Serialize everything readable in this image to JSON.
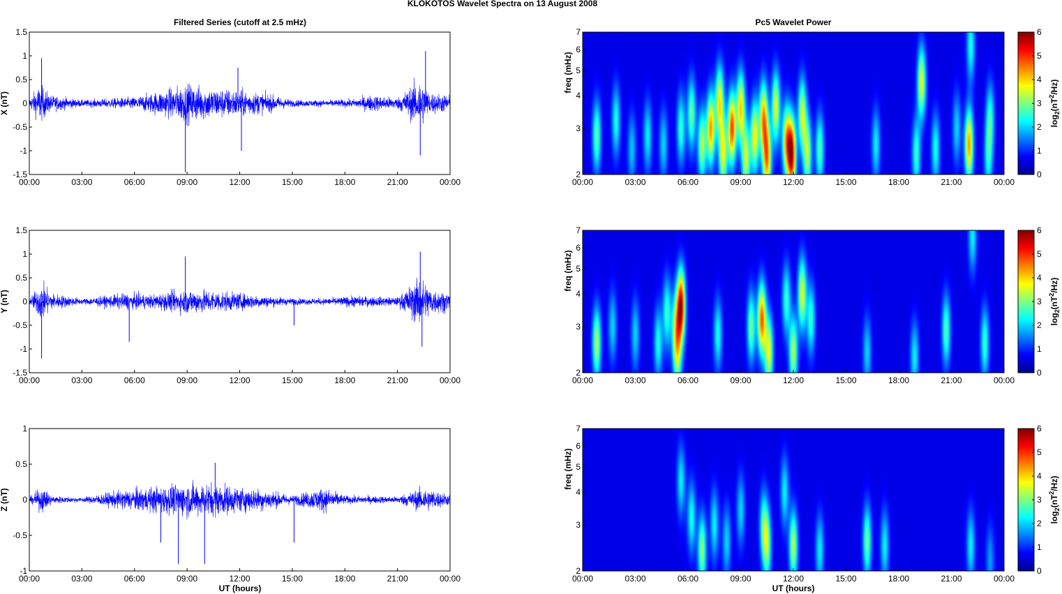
{
  "figure": {
    "suptitle": "KLOKOTOS Wavelet Spectra on 13 August    2008",
    "left_title": "Filtered Series (cutoff at 2.5 mHz)",
    "right_title": "Pc5 Wavelet Power",
    "xlabel": "UT (hours)",
    "colorbar_label": "log2(nT2/Hz)"
  },
  "chart_data": [
    {
      "type": "line",
      "panel": "X",
      "ylabel": "X (nT)",
      "ylim": [
        -1.5,
        1.5
      ],
      "yticks": [
        "-1.5",
        "-1",
        "-0.5",
        "0",
        "0.5",
        "1",
        "1.5"
      ],
      "xlim": [
        0,
        24
      ],
      "xticks": [
        "00:00",
        "03:00",
        "06:00",
        "09:00",
        "12:00",
        "15:00",
        "18:00",
        "21:00",
        "00:00"
      ],
      "series_color": "#0000ff",
      "envelope": {
        "x": [
          0,
          0.6,
          1.2,
          3,
          6,
          7.5,
          9,
          10.5,
          12,
          13.5,
          15,
          17,
          18.5,
          19.5,
          21,
          22.3,
          22.8,
          24
        ],
        "amp": [
          0.15,
          0.7,
          0.3,
          0.12,
          0.22,
          0.45,
          0.7,
          0.55,
          0.5,
          0.35,
          0.12,
          0.12,
          0.15,
          0.3,
          0.2,
          0.9,
          0.4,
          0.3
        ]
      },
      "spikes": [
        {
          "x": 0.7,
          "y": 0.95
        },
        {
          "x": 8.9,
          "y": -1.45
        },
        {
          "x": 12.1,
          "y": -1.0
        },
        {
          "x": 22.3,
          "y": -1.1
        },
        {
          "x": 22.6,
          "y": 1.1
        },
        {
          "x": 11.9,
          "y": 0.75
        }
      ]
    },
    {
      "type": "line",
      "panel": "Y",
      "ylabel": "Y (nT)",
      "ylim": [
        -1.5,
        1.5
      ],
      "yticks": [
        "-1.5",
        "-1",
        "-0.5",
        "0",
        "0.5",
        "1",
        "1.5"
      ],
      "xlim": [
        0,
        24
      ],
      "xticks": [
        "00:00",
        "03:00",
        "06:00",
        "09:00",
        "12:00",
        "15:00",
        "18:00",
        "21:00",
        "00:00"
      ],
      "series_color": "#0000ff",
      "envelope": {
        "x": [
          0,
          0.7,
          1.3,
          3,
          5.5,
          7,
          9,
          10.5,
          12,
          13.5,
          15,
          17,
          18.5,
          21,
          22.3,
          22.9,
          24
        ],
        "amp": [
          0.1,
          0.7,
          0.3,
          0.1,
          0.3,
          0.25,
          0.45,
          0.4,
          0.3,
          0.2,
          0.12,
          0.12,
          0.2,
          0.15,
          0.9,
          0.5,
          0.3
        ]
      },
      "spikes": [
        {
          "x": 0.7,
          "y": -1.2
        },
        {
          "x": 5.7,
          "y": -0.85
        },
        {
          "x": 8.9,
          "y": 0.95
        },
        {
          "x": 15.1,
          "y": -0.5
        },
        {
          "x": 22.4,
          "y": -0.95
        },
        {
          "x": 22.3,
          "y": 1.05
        }
      ]
    },
    {
      "type": "line",
      "panel": "Z",
      "ylabel": "Z (nT)",
      "ylim": [
        -1,
        1
      ],
      "yticks": [
        "-1",
        "-0.5",
        "0",
        "0.5",
        "1"
      ],
      "xlim": [
        0,
        24
      ],
      "xticks": [
        "00:00",
        "03:00",
        "06:00",
        "09:00",
        "12:00",
        "15:00",
        "18:00",
        "21:00",
        "00:00"
      ],
      "series_color": "#0000ff",
      "envelope": {
        "x": [
          0,
          0.7,
          1.3,
          3,
          5.5,
          7,
          9,
          10.5,
          12,
          13.5,
          15,
          16.8,
          18,
          21,
          22.5,
          24
        ],
        "amp": [
          0.05,
          0.3,
          0.1,
          0.05,
          0.25,
          0.3,
          0.4,
          0.4,
          0.3,
          0.25,
          0.1,
          0.3,
          0.1,
          0.08,
          0.3,
          0.12
        ]
      },
      "spikes": [
        {
          "x": 8.5,
          "y": -0.9
        },
        {
          "x": 10,
          "y": -0.9
        },
        {
          "x": 10.6,
          "y": 0.52
        },
        {
          "x": 7.5,
          "y": -0.6
        },
        {
          "x": 15.1,
          "y": -0.6
        }
      ]
    },
    {
      "type": "heatmap",
      "panel": "X",
      "ylabel": "freq (mHz)",
      "ylim": [
        2,
        7
      ],
      "yscale": "log",
      "yticks": [
        "2",
        "3",
        "4",
        "5",
        "6",
        "7"
      ],
      "xlim": [
        0,
        24
      ],
      "xticks": [
        "00:00",
        "03:00",
        "06:00",
        "09:00",
        "12:00",
        "15:00",
        "18:00",
        "21:00",
        "00:00"
      ],
      "clim": [
        0,
        6
      ],
      "cticks": [
        "0",
        "1",
        "2",
        "3",
        "4",
        "5",
        "6"
      ],
      "colormap": "jet",
      "blobs": [
        {
          "t": 0.8,
          "f": 2.8,
          "p": 2.5
        },
        {
          "t": 1.9,
          "f": 3.2,
          "p": 2.0
        },
        {
          "t": 2.8,
          "f": 2.5,
          "p": 1.5
        },
        {
          "t": 3.7,
          "f": 2.8,
          "p": 1.8
        },
        {
          "t": 4.6,
          "f": 2.6,
          "p": 1.6
        },
        {
          "t": 5.6,
          "f": 3.0,
          "p": 2.2
        },
        {
          "t": 6.2,
          "f": 3.4,
          "p": 2.6
        },
        {
          "t": 6.8,
          "f": 2.6,
          "p": 3.0
        },
        {
          "t": 7.3,
          "f": 3.0,
          "p": 4.2
        },
        {
          "t": 7.8,
          "f": 3.8,
          "p": 3.6
        },
        {
          "t": 8.0,
          "f": 2.4,
          "p": 3.4
        },
        {
          "t": 8.5,
          "f": 3.0,
          "p": 4.8
        },
        {
          "t": 9.0,
          "f": 3.6,
          "p": 3.8
        },
        {
          "t": 9.3,
          "f": 2.3,
          "p": 3.2
        },
        {
          "t": 9.8,
          "f": 2.8,
          "p": 3.6
        },
        {
          "t": 10.3,
          "f": 3.3,
          "p": 4.0
        },
        {
          "t": 10.5,
          "f": 2.3,
          "p": 4.2
        },
        {
          "t": 11.0,
          "f": 3.6,
          "p": 3.4
        },
        {
          "t": 11.6,
          "f": 2.7,
          "p": 3.6
        },
        {
          "t": 11.9,
          "f": 2.4,
          "p": 5.6
        },
        {
          "t": 12.5,
          "f": 3.4,
          "p": 3.2
        },
        {
          "t": 12.8,
          "f": 2.4,
          "p": 3.0
        },
        {
          "t": 13.5,
          "f": 2.5,
          "p": 2.4
        },
        {
          "t": 16.7,
          "f": 2.6,
          "p": 1.8
        },
        {
          "t": 19.3,
          "f": 4.5,
          "p": 3.4
        },
        {
          "t": 19.0,
          "f": 2.4,
          "p": 2.2
        },
        {
          "t": 20.1,
          "f": 2.5,
          "p": 2.0
        },
        {
          "t": 21.3,
          "f": 3.0,
          "p": 1.6
        },
        {
          "t": 22.0,
          "f": 2.6,
          "p": 4.2
        },
        {
          "t": 22.1,
          "f": 6.2,
          "p": 2.0
        },
        {
          "t": 23.1,
          "f": 2.3,
          "p": 1.8
        },
        {
          "t": 23.2,
          "f": 3.3,
          "p": 2.0
        }
      ]
    },
    {
      "type": "heatmap",
      "panel": "Y",
      "ylabel": "freq (mHz)",
      "ylim": [
        2,
        7
      ],
      "yscale": "log",
      "yticks": [
        "2",
        "3",
        "4",
        "5",
        "6",
        "7"
      ],
      "xlim": [
        0,
        24
      ],
      "xticks": [
        "00:00",
        "03:00",
        "06:00",
        "09:00",
        "12:00",
        "15:00",
        "18:00",
        "21:00",
        "00:00"
      ],
      "clim": [
        0,
        6
      ],
      "cticks": [
        "0",
        "1",
        "2",
        "3",
        "4",
        "5",
        "6"
      ],
      "colormap": "jet",
      "blobs": [
        {
          "t": 0.8,
          "f": 2.6,
          "p": 3.0
        },
        {
          "t": 1.7,
          "f": 3.0,
          "p": 1.6
        },
        {
          "t": 3.0,
          "f": 2.8,
          "p": 1.6
        },
        {
          "t": 4.3,
          "f": 2.6,
          "p": 2.0
        },
        {
          "t": 4.8,
          "f": 3.4,
          "p": 2.2
        },
        {
          "t": 5.3,
          "f": 3.0,
          "p": 2.4
        },
        {
          "t": 5.6,
          "f": 3.6,
          "p": 5.6
        },
        {
          "t": 5.4,
          "f": 2.3,
          "p": 2.4
        },
        {
          "t": 7.7,
          "f": 2.8,
          "p": 2.0
        },
        {
          "t": 9.6,
          "f": 3.0,
          "p": 2.6
        },
        {
          "t": 10.2,
          "f": 3.2,
          "p": 4.6
        },
        {
          "t": 10.6,
          "f": 2.4,
          "p": 3.4
        },
        {
          "t": 11.6,
          "f": 3.8,
          "p": 2.2
        },
        {
          "t": 12.0,
          "f": 2.4,
          "p": 3.0
        },
        {
          "t": 12.5,
          "f": 4.0,
          "p": 3.4
        },
        {
          "t": 13.0,
          "f": 3.2,
          "p": 2.2
        },
        {
          "t": 16.2,
          "f": 2.4,
          "p": 1.6
        },
        {
          "t": 18.9,
          "f": 2.3,
          "p": 1.8
        },
        {
          "t": 20.7,
          "f": 2.9,
          "p": 2.4
        },
        {
          "t": 22.2,
          "f": 6.6,
          "p": 1.8
        },
        {
          "t": 22.9,
          "f": 2.6,
          "p": 2.2
        }
      ]
    },
    {
      "type": "heatmap",
      "panel": "Z",
      "ylabel": "freq (mHz)",
      "ylim": [
        2,
        7
      ],
      "yscale": "log",
      "yticks": [
        "2",
        "3",
        "4",
        "5",
        "6",
        "7"
      ],
      "xlim": [
        0,
        24
      ],
      "xticks": [
        "00:00",
        "03:00",
        "06:00",
        "09:00",
        "12:00",
        "15:00",
        "18:00",
        "21:00",
        "00:00"
      ],
      "clim": [
        0,
        6
      ],
      "cticks": [
        "0",
        "1",
        "2",
        "3",
        "4",
        "5",
        "6"
      ],
      "colormap": "jet",
      "blobs": [
        {
          "t": 5.6,
          "f": 4.4,
          "p": 1.8
        },
        {
          "t": 6.2,
          "f": 3.2,
          "p": 2.0
        },
        {
          "t": 6.8,
          "f": 2.4,
          "p": 2.8
        },
        {
          "t": 7.5,
          "f": 3.0,
          "p": 1.8
        },
        {
          "t": 8.2,
          "f": 2.6,
          "p": 1.6
        },
        {
          "t": 9.0,
          "f": 3.4,
          "p": 1.6
        },
        {
          "t": 10.3,
          "f": 3.0,
          "p": 2.0
        },
        {
          "t": 10.5,
          "f": 2.5,
          "p": 2.6
        },
        {
          "t": 11.5,
          "f": 4.0,
          "p": 1.8
        },
        {
          "t": 12.0,
          "f": 2.5,
          "p": 3.0
        },
        {
          "t": 13.5,
          "f": 2.4,
          "p": 1.8
        },
        {
          "t": 16.2,
          "f": 2.6,
          "p": 2.6
        },
        {
          "t": 17.2,
          "f": 2.5,
          "p": 1.8
        },
        {
          "t": 22.1,
          "f": 2.5,
          "p": 1.8
        },
        {
          "t": 23.2,
          "f": 2.2,
          "p": 1.2
        }
      ]
    }
  ]
}
